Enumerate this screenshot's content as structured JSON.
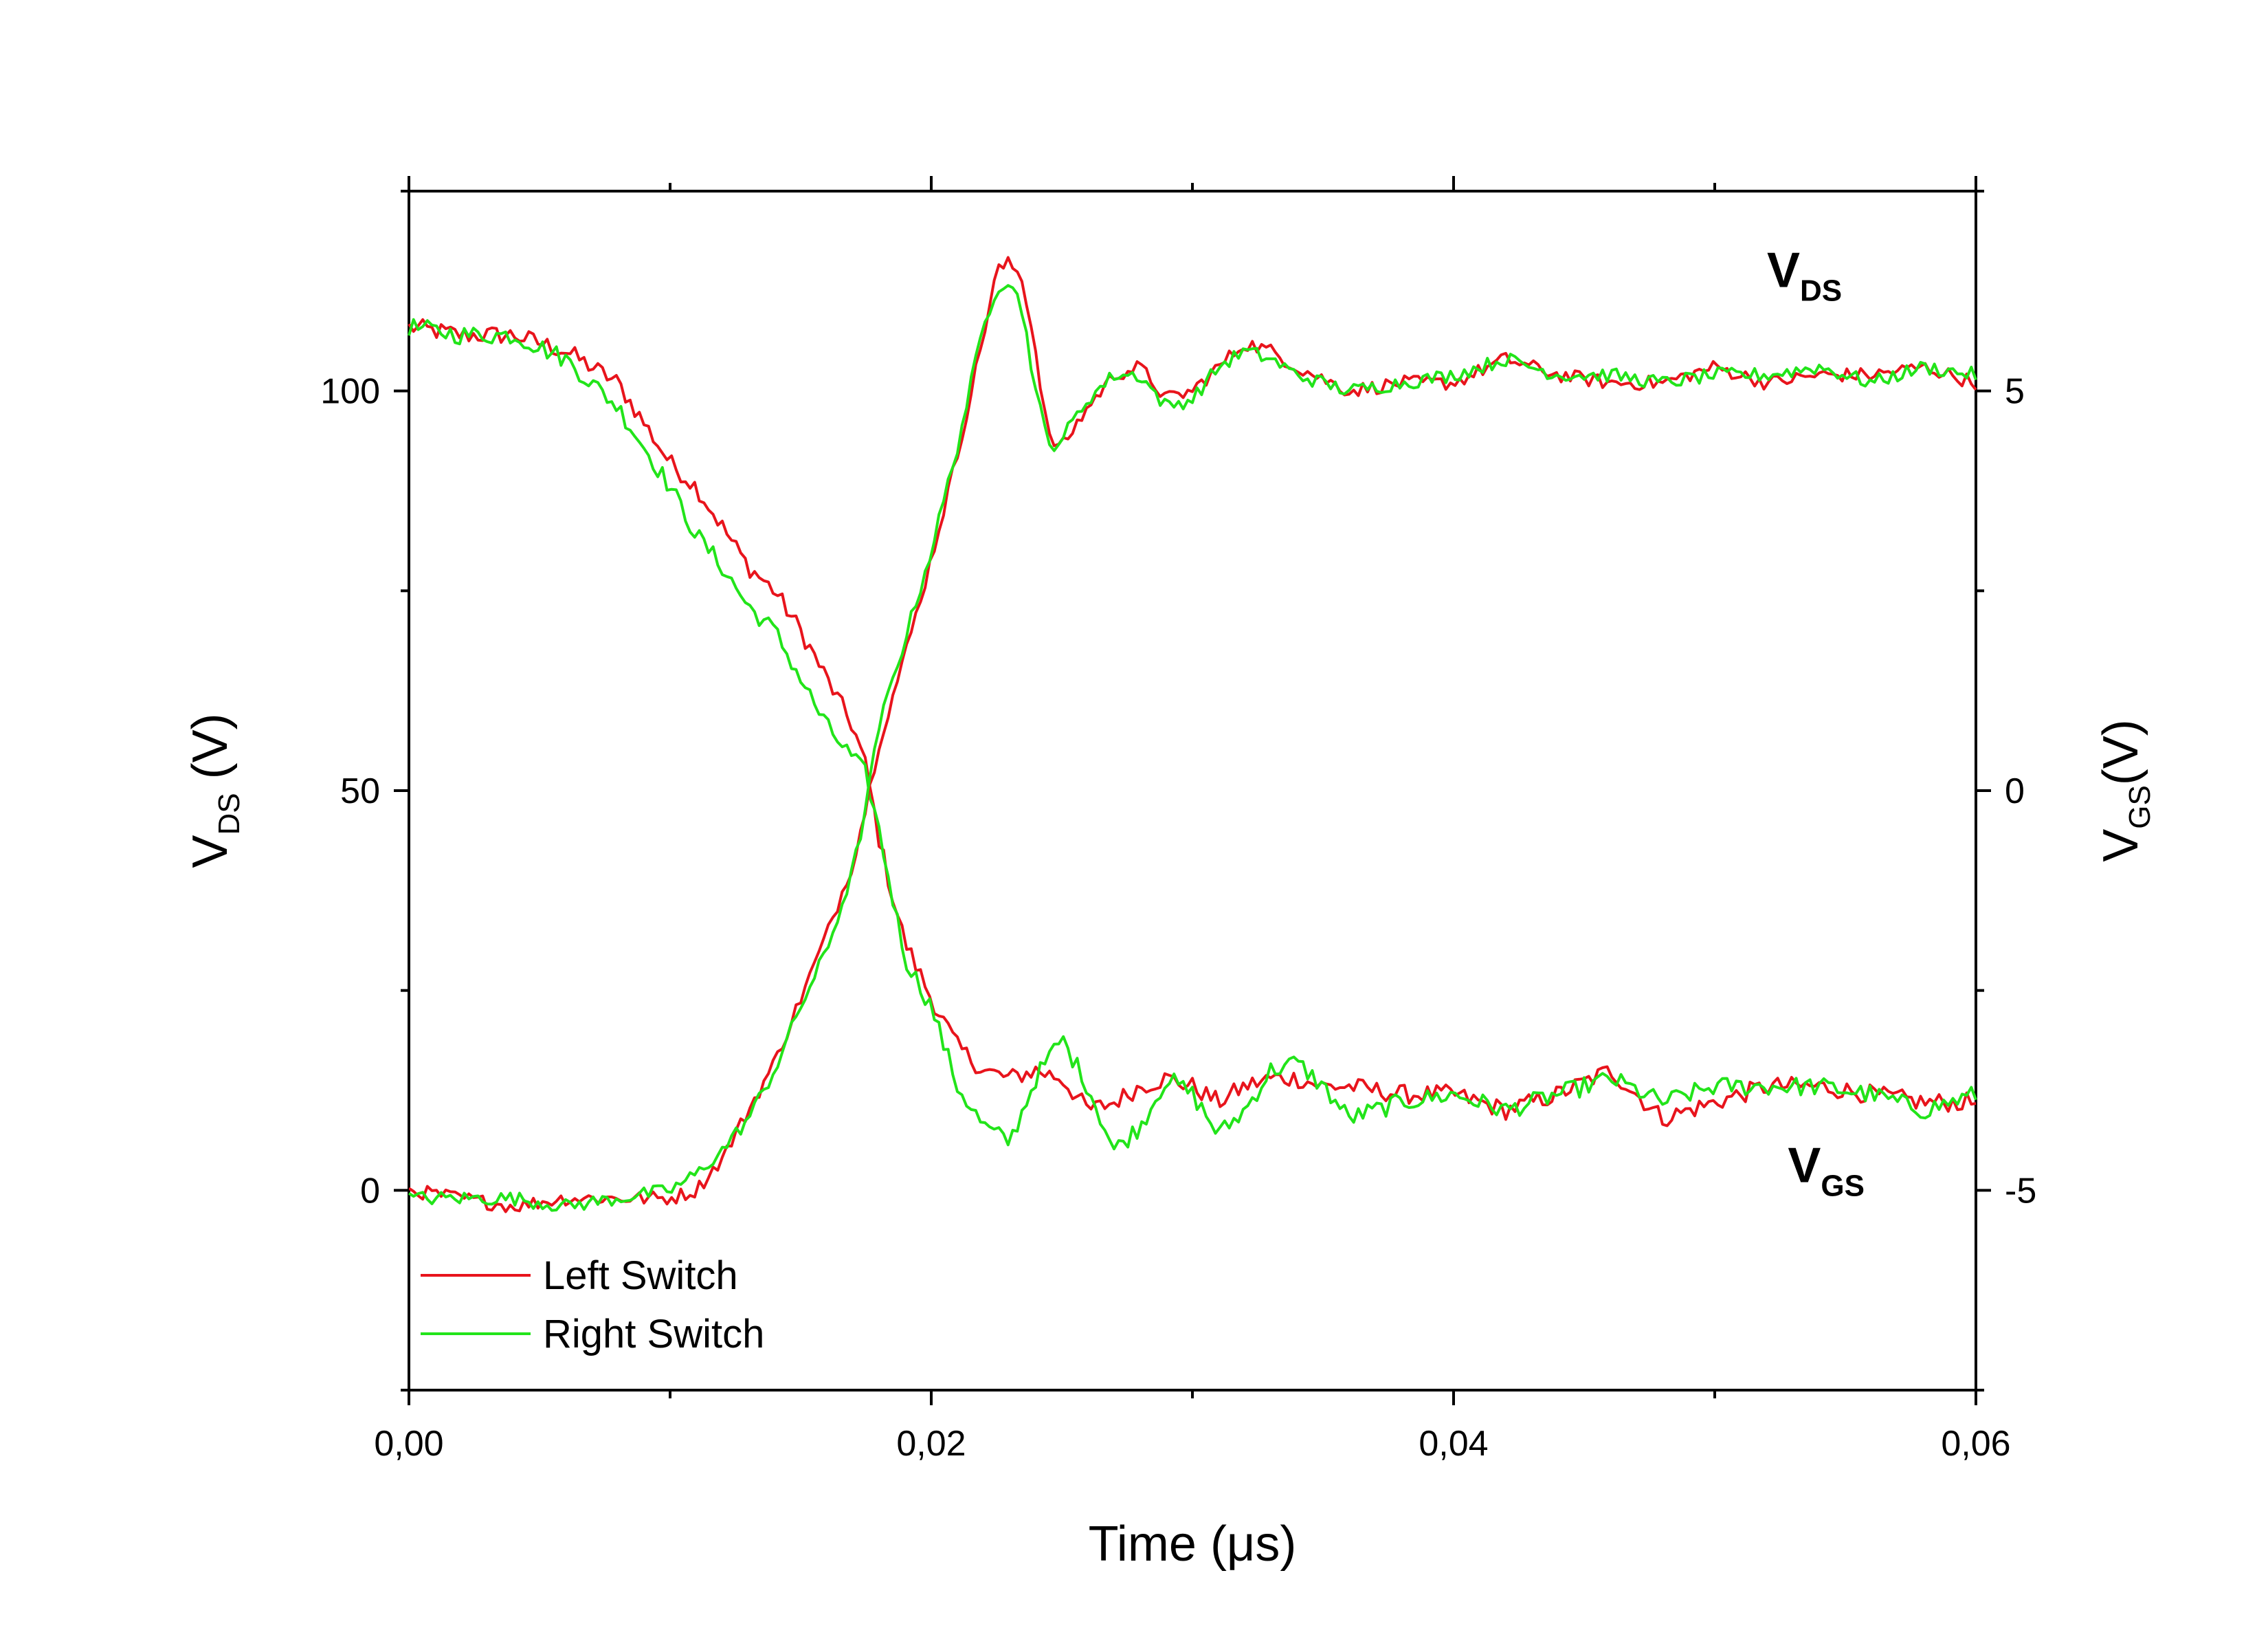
{
  "chart_data": {
    "type": "line",
    "title": "",
    "xlabel": "Time (μs)",
    "ylabel_left": {
      "main": "V",
      "sub": "DS",
      "unit": " (V)"
    },
    "ylabel_right": {
      "main": "V",
      "sub": "GS",
      "unit": "(V)"
    },
    "xlim": [
      0,
      0.06
    ],
    "ylim_left": [
      -25,
      125
    ],
    "ylim_right": [
      -7.5,
      7.5
    ],
    "x_ticks": [
      0,
      0.02,
      0.04,
      0.06
    ],
    "x_tick_labels": [
      "0,00",
      "0,02",
      "0,04",
      "0,06"
    ],
    "y_left_ticks": [
      0,
      50,
      100
    ],
    "y_left_tick_labels": [
      "0",
      "50",
      "100"
    ],
    "y_right_ticks": [
      -5,
      0,
      5
    ],
    "y_right_tick_labels": [
      "-5",
      "0",
      "5"
    ],
    "grid": false,
    "legend_position": "bottom-left",
    "legend": [
      {
        "name": "Left Switch",
        "color": "#e8141c"
      },
      {
        "name": "Right Switch",
        "color": "#22e41a"
      }
    ],
    "annotations": [
      {
        "main": "V",
        "sub": "DS",
        "color": "#1a1ae0",
        "x": 0.052,
        "y": 113
      },
      {
        "main": "V",
        "sub": "GS",
        "color": "#1a1ae0",
        "x": 0.0528,
        "y": 1
      }
    ],
    "series": [
      {
        "name": "Left Switch",
        "quantity": "V_DS",
        "color": "#e8141c",
        "x": [
          0,
          0.002,
          0.004,
          0.006,
          0.008,
          0.009,
          0.01,
          0.011,
          0.012,
          0.013,
          0.014,
          0.015,
          0.016,
          0.017,
          0.0175,
          0.018,
          0.0185,
          0.019,
          0.02,
          0.021,
          0.022,
          0.023,
          0.024,
          0.025,
          0.026,
          0.027,
          0.028,
          0.029,
          0.03,
          0.031,
          0.032,
          0.033,
          0.034,
          0.035,
          0.036,
          0.038,
          0.04,
          0.042,
          0.044,
          0.046,
          0.048,
          0.05,
          0.052,
          0.054,
          0.056,
          0.058,
          0.06
        ],
        "y": [
          108,
          107,
          107,
          105,
          101,
          96,
          91,
          88,
          83,
          78,
          75,
          70,
          64,
          58,
          53,
          44,
          37,
          31,
          24,
          18,
          15,
          14,
          15,
          14,
          10,
          11,
          13,
          14,
          13,
          11,
          13,
          14,
          14,
          13,
          13,
          12,
          12,
          10,
          12,
          15,
          9,
          11,
          13,
          13,
          12,
          11,
          11
        ]
      },
      {
        "name": "Right Switch",
        "quantity": "V_DS",
        "color": "#22e41a",
        "x": [
          0,
          0.002,
          0.004,
          0.006,
          0.008,
          0.009,
          0.01,
          0.011,
          0.012,
          0.013,
          0.014,
          0.015,
          0.016,
          0.017,
          0.0175,
          0.018,
          0.0185,
          0.019,
          0.02,
          0.021,
          0.022,
          0.023,
          0.024,
          0.025,
          0.026,
          0.027,
          0.028,
          0.029,
          0.03,
          0.031,
          0.032,
          0.033,
          0.034,
          0.035,
          0.036,
          0.038,
          0.04,
          0.042,
          0.044,
          0.046,
          0.048,
          0.05,
          0.052,
          0.054,
          0.056,
          0.058,
          0.06
        ],
        "y": [
          108,
          107,
          107,
          104,
          98,
          93,
          88,
          82,
          78,
          73,
          70,
          64,
          58,
          54,
          52,
          45,
          37,
          29,
          23,
          13,
          8,
          6,
          14,
          19,
          13,
          5,
          8,
          14,
          12,
          7,
          10,
          15,
          16,
          13,
          9,
          11,
          12,
          10,
          12,
          14,
          11,
          13,
          13,
          13,
          12,
          10,
          12
        ]
      },
      {
        "name": "Left Switch",
        "quantity": "V_GS",
        "color": "#e8141c",
        "x": [
          0,
          0.002,
          0.004,
          0.006,
          0.008,
          0.01,
          0.011,
          0.012,
          0.013,
          0.014,
          0.015,
          0.016,
          0.017,
          0.0175,
          0.018,
          0.019,
          0.02,
          0.021,
          0.022,
          0.0225,
          0.023,
          0.0235,
          0.024,
          0.0245,
          0.025,
          0.026,
          0.027,
          0.028,
          0.029,
          0.03,
          0.031,
          0.032,
          0.033,
          0.034,
          0.036,
          0.038,
          0.04,
          0.042,
          0.044,
          0.046,
          0.048,
          0.05,
          0.052,
          0.054,
          0.056,
          0.058,
          0.06
        ],
        "y": [
          -5.0,
          -5.1,
          -5.2,
          -5.1,
          -5.1,
          -5.1,
          -5.0,
          -4.6,
          -4.0,
          -3.4,
          -2.6,
          -1.8,
          -0.9,
          -0.2,
          0.6,
          1.7,
          2.9,
          4.2,
          5.7,
          6.5,
          6.6,
          6.4,
          5.5,
          4.4,
          4.3,
          4.8,
          5.2,
          5.3,
          4.9,
          5.0,
          5.3,
          5.6,
          5.5,
          5.3,
          5.0,
          5.1,
          5.1,
          5.4,
          5.2,
          5.1,
          5.1,
          5.3,
          5.1,
          5.2,
          5.2,
          5.3,
          5.1
        ]
      },
      {
        "name": "Right Switch",
        "quantity": "V_GS",
        "color": "#22e41a",
        "x": [
          0,
          0.002,
          0.004,
          0.006,
          0.008,
          0.01,
          0.011,
          0.012,
          0.013,
          0.014,
          0.015,
          0.016,
          0.017,
          0.0175,
          0.018,
          0.019,
          0.02,
          0.021,
          0.022,
          0.0225,
          0.023,
          0.0235,
          0.024,
          0.0245,
          0.025,
          0.026,
          0.027,
          0.028,
          0.029,
          0.03,
          0.031,
          0.032,
          0.033,
          0.034,
          0.036,
          0.038,
          0.04,
          0.042,
          0.044,
          0.046,
          0.048,
          0.05,
          0.052,
          0.054,
          0.056,
          0.058,
          0.06
        ],
        "y": [
          -5.1,
          -5.1,
          -5.1,
          -5.2,
          -5.1,
          -5.0,
          -4.8,
          -4.5,
          -4.1,
          -3.5,
          -2.7,
          -2.0,
          -1.0,
          -0.2,
          0.8,
          1.9,
          3.0,
          4.3,
          5.8,
          6.3,
          6.4,
          6.0,
          5.0,
          4.3,
          4.4,
          4.9,
          5.2,
          5.2,
          4.8,
          4.9,
          5.3,
          5.5,
          5.4,
          5.2,
          5.0,
          5.1,
          5.2,
          5.4,
          5.2,
          5.2,
          5.1,
          5.2,
          5.2,
          5.3,
          5.1,
          5.3,
          5.2
        ]
      }
    ]
  }
}
